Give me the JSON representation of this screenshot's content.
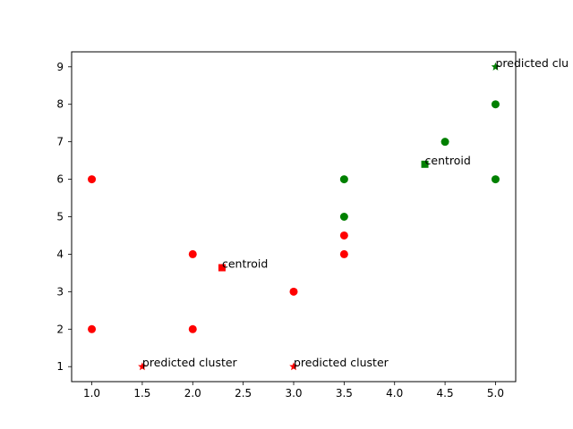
{
  "chart_data": {
    "type": "scatter",
    "title": "",
    "xlabel": "",
    "ylabel": "",
    "xlim": [
      0.8,
      5.2
    ],
    "ylim": [
      0.6,
      9.4
    ],
    "grid": false,
    "x_ticks": [
      1.0,
      1.5,
      2.0,
      2.5,
      3.0,
      3.5,
      4.0,
      4.5,
      5.0
    ],
    "x_tick_labels": [
      "1.0",
      "1.5",
      "2.0",
      "2.5",
      "3.0",
      "3.5",
      "4.0",
      "4.5",
      "5.0"
    ],
    "y_ticks": [
      1,
      2,
      3,
      4,
      5,
      6,
      7,
      8,
      9
    ],
    "y_tick_labels": [
      "1",
      "2",
      "3",
      "4",
      "5",
      "6",
      "7",
      "8",
      "9"
    ],
    "series": [
      {
        "color": "#ff0000",
        "marker": "circle",
        "points": [
          {
            "x": 1.0,
            "y": 6
          },
          {
            "x": 1.0,
            "y": 2
          },
          {
            "x": 2.0,
            "y": 4
          },
          {
            "x": 2.0,
            "y": 2
          },
          {
            "x": 3.0,
            "y": 3
          },
          {
            "x": 3.5,
            "y": 4.5
          },
          {
            "x": 3.5,
            "y": 4
          }
        ]
      },
      {
        "color": "#008000",
        "marker": "circle",
        "points": [
          {
            "x": 3.5,
            "y": 6
          },
          {
            "x": 3.5,
            "y": 5
          },
          {
            "x": 4.5,
            "y": 7
          },
          {
            "x": 5.0,
            "y": 8
          },
          {
            "x": 5.0,
            "y": 6
          }
        ]
      },
      {
        "color": "#ff0000",
        "marker": "square",
        "points": [
          {
            "x": 2.29,
            "y": 3.64,
            "label": "centroid"
          }
        ]
      },
      {
        "color": "#008000",
        "marker": "square",
        "points": [
          {
            "x": 4.3,
            "y": 6.4,
            "label": "centroid"
          }
        ]
      },
      {
        "color": "#ff0000",
        "marker": "star",
        "points": [
          {
            "x": 1.5,
            "y": 1,
            "label": "predicted cluster"
          },
          {
            "x": 3.0,
            "y": 1,
            "label": "predicted cluster"
          }
        ]
      },
      {
        "color": "#008000",
        "marker": "star",
        "points": [
          {
            "x": 5.0,
            "y": 9,
            "label": "predicted clu"
          }
        ]
      }
    ]
  }
}
